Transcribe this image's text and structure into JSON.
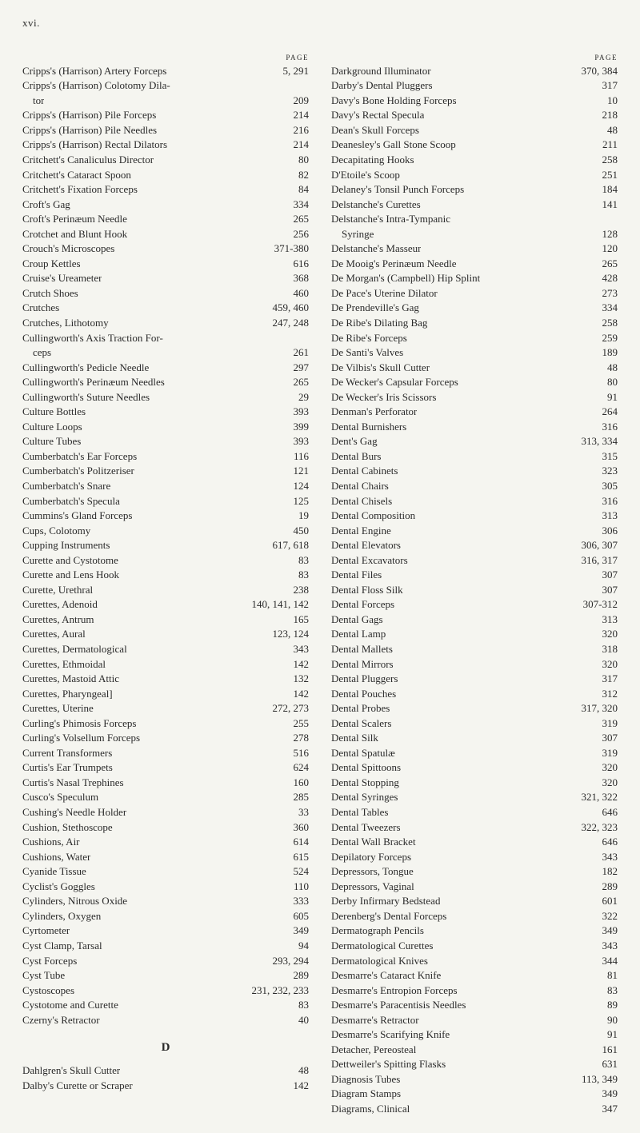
{
  "header": "xvi.",
  "page_label": "PAGE",
  "section_d": "D",
  "left_entries": [
    {
      "label": "Cripps's (Harrison) Artery Forceps",
      "page": "5, 291"
    },
    {
      "label": "Cripps's (Harrison) Colotomy Dila-",
      "page": ""
    },
    {
      "label": "    tor",
      "page": "209"
    },
    {
      "label": "Cripps's (Harrison) Pile Forceps",
      "page": "214"
    },
    {
      "label": "Cripps's (Harrison) Pile Needles",
      "page": "216"
    },
    {
      "label": "Cripps's (Harrison) Rectal Dilators",
      "page": "214"
    },
    {
      "label": "Critchett's Canaliculus Director",
      "page": "80"
    },
    {
      "label": "Critchett's Cataract Spoon",
      "page": "82"
    },
    {
      "label": "Critchett's Fixation Forceps",
      "page": "84"
    },
    {
      "label": "Croft's Gag",
      "page": "334"
    },
    {
      "label": "Croft's Perinæum Needle",
      "page": "265"
    },
    {
      "label": "Crotchet and Blunt Hook",
      "page": "256"
    },
    {
      "label": "Crouch's Microscopes",
      "page": "371-380"
    },
    {
      "label": "Croup Kettles",
      "page": "616"
    },
    {
      "label": "Cruise's Ureameter",
      "page": "368"
    },
    {
      "label": "Crutch Shoes",
      "page": "460"
    },
    {
      "label": "Crutches",
      "page": "459, 460"
    },
    {
      "label": "Crutches, Lithotomy",
      "page": "247, 248"
    },
    {
      "label": "Cullingworth's Axis Traction For-",
      "page": ""
    },
    {
      "label": "    ceps",
      "page": "261"
    },
    {
      "label": "Cullingworth's Pedicle Needle",
      "page": "297"
    },
    {
      "label": "Cullingworth's Perinæum Needles",
      "page": "265"
    },
    {
      "label": "Cullingworth's Suture Needles",
      "page": "29"
    },
    {
      "label": "Culture Bottles",
      "page": "393"
    },
    {
      "label": "Culture Loops",
      "page": "399"
    },
    {
      "label": "Culture Tubes",
      "page": "393"
    },
    {
      "label": "Cumberbatch's Ear Forceps",
      "page": "116"
    },
    {
      "label": "Cumberbatch's Politzeriser",
      "page": "121"
    },
    {
      "label": "Cumberbatch's Snare",
      "page": "124"
    },
    {
      "label": "Cumberbatch's Specula",
      "page": "125"
    },
    {
      "label": "Cummins's Gland Forceps",
      "page": "19"
    },
    {
      "label": "Cups, Colotomy",
      "page": "450"
    },
    {
      "label": "Cupping Instruments",
      "page": "617, 618"
    },
    {
      "label": "Curette and Cystotome",
      "page": "83"
    },
    {
      "label": "Curette and Lens Hook",
      "page": "83"
    },
    {
      "label": "Curette, Urethral",
      "page": "238"
    },
    {
      "label": "Curettes, Adenoid",
      "page": "140, 141, 142"
    },
    {
      "label": "Curettes, Antrum",
      "page": "165"
    },
    {
      "label": "Curettes, Aural",
      "page": "123, 124"
    },
    {
      "label": "Curettes, Dermatological",
      "page": "343"
    },
    {
      "label": "Curettes, Ethmoidal",
      "page": "142"
    },
    {
      "label": "Curettes, Mastoid Attic",
      "page": "132"
    },
    {
      "label": "Curettes, Pharyngeal]",
      "page": "142"
    },
    {
      "label": "Curettes, Uterine",
      "page": "272, 273"
    },
    {
      "label": "Curling's Phimosis Forceps",
      "page": "255"
    },
    {
      "label": "Curling's Volsellum Forceps",
      "page": "278"
    },
    {
      "label": "Current Transformers",
      "page": "516"
    },
    {
      "label": "Curtis's Ear Trumpets",
      "page": "624"
    },
    {
      "label": "Curtis's Nasal Trephines",
      "page": "160"
    },
    {
      "label": "Cusco's Speculum",
      "page": "285"
    },
    {
      "label": "Cushing's Needle Holder",
      "page": "33"
    },
    {
      "label": "Cushion, Stethoscope",
      "page": "360"
    },
    {
      "label": "Cushions, Air",
      "page": "614"
    },
    {
      "label": "Cushions, Water",
      "page": "615"
    },
    {
      "label": "Cyanide Tissue",
      "page": "524"
    },
    {
      "label": "Cyclist's Goggles",
      "page": "110"
    },
    {
      "label": "Cylinders, Nitrous Oxide",
      "page": "333"
    },
    {
      "label": "Cylinders, Oxygen",
      "page": "605"
    },
    {
      "label": "Cyrtometer",
      "page": "349"
    },
    {
      "label": "Cyst Clamp, Tarsal",
      "page": "94"
    },
    {
      "label": "Cyst Forceps",
      "page": "293, 294"
    },
    {
      "label": "Cyst Tube",
      "page": "289"
    },
    {
      "label": "Cystoscopes",
      "page": "231, 232, 233"
    },
    {
      "label": "Cystotome and Curette",
      "page": "83"
    },
    {
      "label": "Czerny's Retractor",
      "page": "40"
    }
  ],
  "d_entries": [
    {
      "label": "Dahlgren's Skull Cutter",
      "page": "48"
    },
    {
      "label": "Dalby's Curette or Scraper",
      "page": "142"
    }
  ],
  "right_entries": [
    {
      "label": "Darkground Illuminator",
      "page": "370, 384"
    },
    {
      "label": "Darby's Dental Pluggers",
      "page": "317"
    },
    {
      "label": "Davy's Bone Holding Forceps",
      "page": "10"
    },
    {
      "label": "Davy's Rectal Specula",
      "page": "218"
    },
    {
      "label": "Dean's Skull Forceps",
      "page": "48"
    },
    {
      "label": "Deanesley's Gall Stone Scoop",
      "page": "211"
    },
    {
      "label": "Decapitating Hooks",
      "page": "258"
    },
    {
      "label": "D'Etoile's Scoop",
      "page": "251"
    },
    {
      "label": "Delaney's Tonsil Punch Forceps",
      "page": "184"
    },
    {
      "label": "Delstanche's Curettes",
      "page": "141"
    },
    {
      "label": "Delstanche's Intra-Tympanic",
      "page": ""
    },
    {
      "label": "    Syringe",
      "page": "128"
    },
    {
      "label": "Delstanche's Masseur",
      "page": "120"
    },
    {
      "label": "De Mooig's Perinæum Needle",
      "page": "265"
    },
    {
      "label": "De Morgan's (Campbell) Hip Splint",
      "page": "428"
    },
    {
      "label": "De Pace's Uterine Dilator",
      "page": "273"
    },
    {
      "label": "De Prendeville's Gag",
      "page": "334"
    },
    {
      "label": "De Ribe's Dilating Bag",
      "page": "258"
    },
    {
      "label": "De Ribe's Forceps",
      "page": "259"
    },
    {
      "label": "De Santi's Valves",
      "page": "189"
    },
    {
      "label": "De Vilbis's Skull Cutter",
      "page": "48"
    },
    {
      "label": "De Wecker's Capsular Forceps",
      "page": "80"
    },
    {
      "label": "De Wecker's Iris Scissors",
      "page": "91"
    },
    {
      "label": "Denman's Perforator",
      "page": "264"
    },
    {
      "label": "Dental Burnishers",
      "page": "316"
    },
    {
      "label": "Dent's Gag",
      "page": "313, 334"
    },
    {
      "label": "Dental Burs",
      "page": "315"
    },
    {
      "label": "Dental Cabinets",
      "page": "323"
    },
    {
      "label": "Dental Chairs",
      "page": "305"
    },
    {
      "label": "Dental Chisels",
      "page": "316"
    },
    {
      "label": "Dental Composition",
      "page": "313"
    },
    {
      "label": "Dental Engine",
      "page": "306"
    },
    {
      "label": "Dental Elevators",
      "page": "306, 307"
    },
    {
      "label": "Dental Excavators",
      "page": "316, 317"
    },
    {
      "label": "Dental Files",
      "page": "307"
    },
    {
      "label": "Dental Floss Silk",
      "page": "307"
    },
    {
      "label": "Dental Forceps",
      "page": "307-312"
    },
    {
      "label": "Dental Gags",
      "page": "313"
    },
    {
      "label": "Dental Lamp",
      "page": "320"
    },
    {
      "label": "Dental Mallets",
      "page": "318"
    },
    {
      "label": "Dental Mirrors",
      "page": "320"
    },
    {
      "label": "Dental Pluggers",
      "page": "317"
    },
    {
      "label": "Dental Pouches",
      "page": "312"
    },
    {
      "label": "Dental Probes",
      "page": "317, 320"
    },
    {
      "label": "Dental Scalers",
      "page": "319"
    },
    {
      "label": "Dental Silk",
      "page": "307"
    },
    {
      "label": "Dental Spatulæ",
      "page": "319"
    },
    {
      "label": "Dental Spittoons",
      "page": "320"
    },
    {
      "label": "Dental Stopping",
      "page": "320"
    },
    {
      "label": "Dental Syringes",
      "page": "321, 322"
    },
    {
      "label": "Dental Tables",
      "page": "646"
    },
    {
      "label": "Dental Tweezers",
      "page": "322, 323"
    },
    {
      "label": "Dental Wall Bracket",
      "page": "646"
    },
    {
      "label": "Depilatory Forceps",
      "page": "343"
    },
    {
      "label": "Depressors, Tongue",
      "page": "182"
    },
    {
      "label": "Depressors, Vaginal",
      "page": "289"
    },
    {
      "label": "Derby Infirmary Bedstead",
      "page": "601"
    },
    {
      "label": "Derenberg's Dental Forceps",
      "page": "322"
    },
    {
      "label": "Dermatograph Pencils",
      "page": "349"
    },
    {
      "label": "Dermatological Curettes",
      "page": "343"
    },
    {
      "label": "Dermatological Knives",
      "page": "344"
    },
    {
      "label": "Desmarre's Cataract Knife",
      "page": "81"
    },
    {
      "label": "Desmarre's Entropion Forceps",
      "page": "83"
    },
    {
      "label": "Desmarre's Paracentisis Needles",
      "page": "89"
    },
    {
      "label": "Desmarre's Retractor",
      "page": "90"
    },
    {
      "label": "Desmarre's Scarifying Knife",
      "page": "91"
    },
    {
      "label": "Detacher, Pereosteal",
      "page": "161"
    },
    {
      "label": "Dettweiler's Spitting Flasks",
      "page": "631"
    },
    {
      "label": "Diagnosis Tubes",
      "page": "113, 349"
    },
    {
      "label": "Diagram Stamps",
      "page": "349"
    },
    {
      "label": "Diagrams, Clinical",
      "page": "347"
    }
  ]
}
